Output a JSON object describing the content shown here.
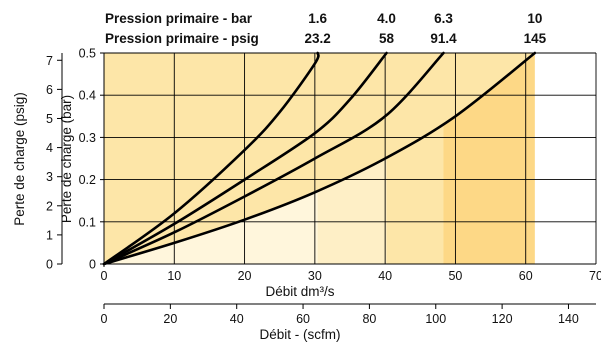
{
  "chart_data": {
    "type": "line",
    "title": "",
    "header_rows": [
      {
        "label": "Pression primaire - bar",
        "values": [
          "1.6",
          "4.0",
          "6.3",
          "10"
        ]
      },
      {
        "label": "Pression primaire - psig",
        "values": [
          "23.2",
          "58",
          "91.4",
          "145"
        ]
      }
    ],
    "xlabel": "Débit dm³/s",
    "xlabel_secondary": "Débit - (scfm)",
    "ylabel": "Perte de charge (bar)",
    "ylabel_secondary": "Perte de charge (psig)",
    "xlim": [
      0,
      70
    ],
    "ylim": [
      0,
      0.5
    ],
    "x_ticks": [
      "0",
      "10",
      "20",
      "30",
      "40",
      "50",
      "60",
      "70"
    ],
    "y_ticks": [
      "0",
      "0.1",
      "0.2",
      "0.3",
      "0.4",
      "0.5"
    ],
    "x_secondary_lim": [
      0,
      148.3
    ],
    "x_secondary_ticks": [
      "0",
      "20",
      "40",
      "60",
      "80",
      "100",
      "120",
      "140"
    ],
    "y_secondary_lim": [
      0,
      7.25
    ],
    "y_secondary_ticks": [
      "0",
      "1",
      "2",
      "3",
      "4",
      "5",
      "6",
      "7"
    ],
    "grid": true,
    "fill_colors": [
      "#fff6dc",
      "#feefc6",
      "#fde6a8",
      "#fdd886"
    ],
    "line_color": "#000000",
    "series": [
      {
        "name": "1.6",
        "x": [
          0,
          10,
          20,
          25,
          30,
          30.4
        ],
        "y": [
          0,
          0.12,
          0.27,
          0.36,
          0.475,
          0.5
        ]
      },
      {
        "name": "4.0",
        "x": [
          0,
          10,
          20,
          30,
          35,
          40.2
        ],
        "y": [
          0,
          0.095,
          0.2,
          0.31,
          0.39,
          0.5
        ]
      },
      {
        "name": "6.3",
        "x": [
          0,
          10,
          20,
          30,
          40,
          48.3
        ],
        "y": [
          0,
          0.075,
          0.16,
          0.25,
          0.35,
          0.5
        ]
      },
      {
        "name": "10",
        "x": [
          0,
          10,
          20,
          30,
          40,
          50,
          61.3
        ],
        "y": [
          0,
          0.05,
          0.105,
          0.17,
          0.25,
          0.35,
          0.5
        ]
      }
    ]
  }
}
